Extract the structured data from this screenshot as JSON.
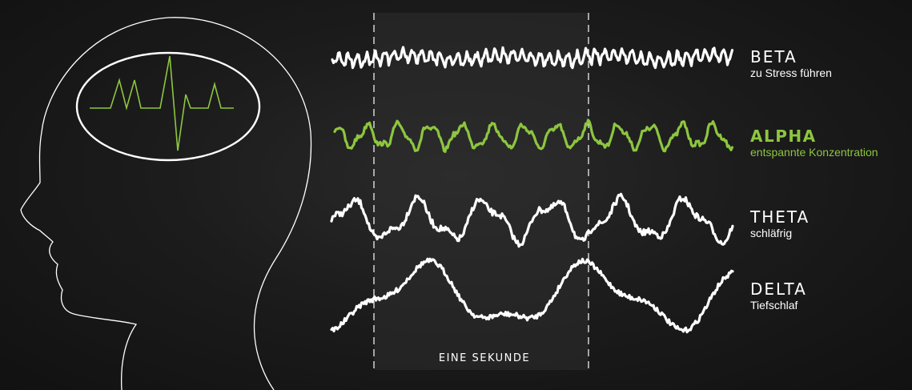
{
  "colors": {
    "background": "#1a1a1a",
    "wave": "#ffffff",
    "accent": "#8dc63f",
    "highlight_band": "#2c2c2c"
  },
  "caption": "EINE SEKUNDE",
  "waves": [
    {
      "name": "BETA",
      "description": "zu Stress führen",
      "accent": false
    },
    {
      "name": "ALPHA",
      "description": "entspannte Konzentration",
      "accent": true
    },
    {
      "name": "THETA",
      "description": "schläfrig",
      "accent": false
    },
    {
      "name": "DELTA",
      "description": "Tiefschlaf",
      "accent": false
    }
  ],
  "icons": {
    "head": "head-outline-icon",
    "brain_signal": "brain-spike-icon"
  }
}
